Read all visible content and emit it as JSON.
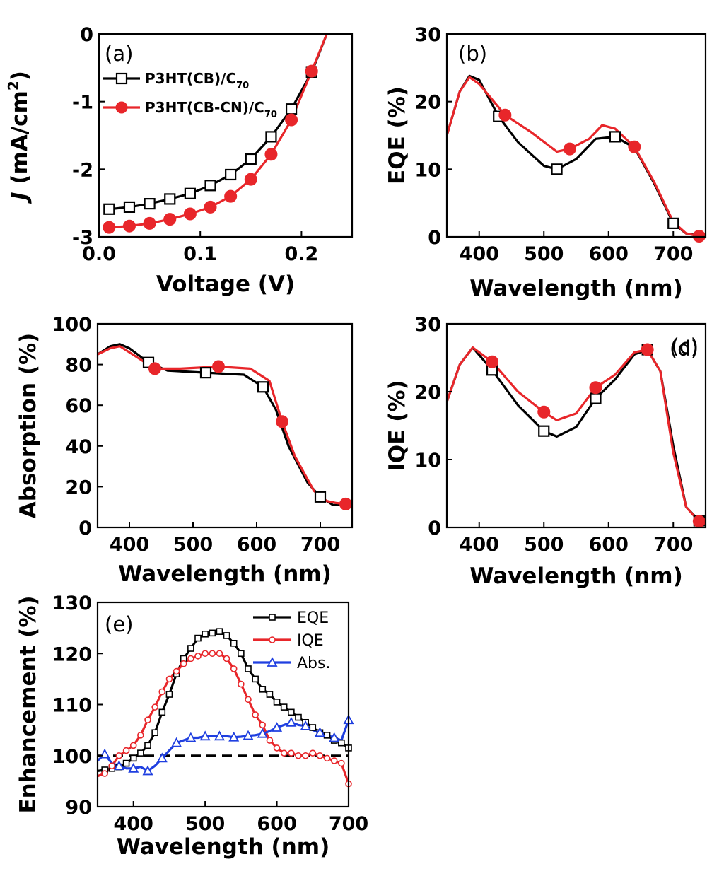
{
  "colors": {
    "black": "#000000",
    "red": "#e8262a",
    "blue": "#1f3fe0",
    "dash": "#000000"
  },
  "chart_data": [
    {
      "id": "a",
      "type": "line",
      "panel_label": "(a)",
      "xlabel": "Voltage (V)",
      "ylabel": "J (mA/cm²)",
      "ylabel_italic": "J",
      "ylabel_rest": " (mA/cm",
      "ylabel_sup": "2",
      "ylabel_close": ")",
      "xlim": [
        0.0,
        0.25
      ],
      "ylim": [
        -3,
        0
      ],
      "xticks": [
        0.0,
        0.1,
        0.2
      ],
      "xticklabels": [
        "0.0",
        "0.1",
        "0.2"
      ],
      "yticks": [
        0,
        -1,
        -2,
        -3
      ],
      "yticklabels": [
        "0",
        "-1",
        "-2",
        "-3"
      ],
      "legend": [
        {
          "text": "P3HT(CB)/C",
          "sub": "70"
        },
        {
          "text": "P3HT(CB-CN)/C",
          "sub": "70"
        }
      ],
      "series": [
        {
          "name": "P3HT(CB)/C70",
          "color": "#000000",
          "marker": "open-square",
          "x": [
            0.01,
            0.03,
            0.05,
            0.07,
            0.09,
            0.11,
            0.13,
            0.15,
            0.17,
            0.19,
            0.21,
            0.225
          ],
          "y": [
            -2.59,
            -2.56,
            -2.51,
            -2.44,
            -2.36,
            -2.24,
            -2.08,
            -1.85,
            -1.52,
            -1.11,
            -0.57,
            0.0
          ],
          "mx": [
            0.01,
            0.03,
            0.05,
            0.07,
            0.09,
            0.11,
            0.13,
            0.15,
            0.17,
            0.19,
            0.21
          ],
          "my": [
            -2.59,
            -2.56,
            -2.51,
            -2.44,
            -2.36,
            -2.24,
            -2.08,
            -1.85,
            -1.52,
            -1.11,
            -0.57
          ]
        },
        {
          "name": "P3HT(CB-CN)/C70",
          "color": "#e8262a",
          "marker": "filled-circle",
          "x": [
            0.01,
            0.03,
            0.05,
            0.07,
            0.09,
            0.11,
            0.13,
            0.15,
            0.17,
            0.19,
            0.21,
            0.225
          ],
          "y": [
            -2.86,
            -2.84,
            -2.8,
            -2.74,
            -2.66,
            -2.56,
            -2.4,
            -2.15,
            -1.78,
            -1.27,
            -0.55,
            0.0
          ],
          "mx": [
            0.01,
            0.03,
            0.05,
            0.07,
            0.09,
            0.11,
            0.13,
            0.15,
            0.17,
            0.19,
            0.21
          ],
          "my": [
            -2.86,
            -2.84,
            -2.8,
            -2.74,
            -2.66,
            -2.56,
            -2.4,
            -2.15,
            -1.78,
            -1.27,
            -0.55
          ]
        }
      ]
    },
    {
      "id": "b",
      "type": "line",
      "panel_label": "(b)",
      "xlabel": "Wavelength (nm)",
      "ylabel": "EQE (%)",
      "xlim": [
        350,
        750
      ],
      "ylim": [
        0,
        30
      ],
      "xticks": [
        400,
        500,
        600,
        700
      ],
      "xticklabels": [
        "400",
        "500",
        "600",
        "700"
      ],
      "yticks": [
        0,
        10,
        20,
        30
      ],
      "yticklabels": [
        "0",
        "10",
        "20",
        "30"
      ],
      "series": [
        {
          "name": "P3HT(CB)/C70",
          "color": "#000000",
          "marker": "open-square",
          "x": [
            350,
            370,
            385,
            400,
            430,
            460,
            500,
            520,
            550,
            580,
            610,
            640,
            670,
            700,
            720,
            740
          ],
          "y": [
            15,
            21.5,
            23.8,
            23.2,
            17.8,
            14,
            10.5,
            10,
            11.5,
            14.5,
            14.8,
            13.2,
            8,
            2,
            0.5,
            0.2
          ],
          "mx": [
            430,
            520,
            610,
            700
          ],
          "my": [
            17.8,
            10,
            14.8,
            2
          ]
        },
        {
          "name": "P3HT(CB-CN)/C70",
          "color": "#e8262a",
          "marker": "filled-circle",
          "x": [
            350,
            370,
            385,
            400,
            440,
            480,
            520,
            540,
            570,
            590,
            610,
            640,
            670,
            700,
            720,
            740
          ],
          "y": [
            15,
            21.5,
            23.6,
            22.6,
            18,
            15.5,
            12.6,
            13,
            14.5,
            16.5,
            16,
            13.3,
            8.2,
            2.2,
            0.5,
            0.1
          ],
          "mx": [
            440,
            540,
            640,
            740
          ],
          "my": [
            18,
            13,
            13.3,
            0.1
          ]
        }
      ]
    },
    {
      "id": "c",
      "type": "line",
      "panel_label": "(c)",
      "xlabel": "Wavelength (nm)",
      "ylabel": "Absorption (%)",
      "xlim": [
        350,
        750
      ],
      "ylim": [
        0,
        100
      ],
      "xticks": [
        400,
        500,
        600,
        700
      ],
      "xticklabels": [
        "400",
        "500",
        "600",
        "700"
      ],
      "yticks": [
        0,
        20,
        40,
        60,
        80,
        100
      ],
      "yticklabels": [
        "0",
        "20",
        "40",
        "60",
        "80",
        "100"
      ],
      "series": [
        {
          "name": "P3HT(CB)/C70",
          "color": "#000000",
          "marker": "open-square",
          "x": [
            350,
            370,
            385,
            400,
            430,
            460,
            520,
            580,
            610,
            630,
            650,
            680,
            700,
            720,
            740
          ],
          "y": [
            85,
            89,
            90,
            88,
            81,
            77,
            76,
            75,
            69,
            58,
            40,
            22,
            15,
            11,
            11
          ],
          "mx": [
            430,
            520,
            610,
            700
          ],
          "my": [
            81,
            76,
            69,
            15
          ]
        },
        {
          "name": "P3HT(CB-CN)/C70",
          "color": "#e8262a",
          "marker": "filled-circle",
          "x": [
            350,
            370,
            385,
            400,
            440,
            480,
            540,
            590,
            620,
            640,
            660,
            690,
            710,
            725,
            740
          ],
          "y": [
            85,
            88,
            89,
            86,
            78,
            78,
            79,
            78,
            72,
            52,
            35,
            18,
            13,
            12,
            11.5
          ],
          "mx": [
            440,
            540,
            640,
            740
          ],
          "my": [
            78,
            79,
            52,
            11.5
          ]
        }
      ]
    },
    {
      "id": "d",
      "type": "line",
      "panel_label": "(d)",
      "xlabel": "Wavelength (nm)",
      "ylabel": "IQE (%)",
      "xlim": [
        350,
        750
      ],
      "ylim": [
        0,
        30
      ],
      "xticks": [
        400,
        500,
        600,
        700
      ],
      "xticklabels": [
        "400",
        "500",
        "600",
        "700"
      ],
      "yticks": [
        0,
        10,
        20,
        30
      ],
      "yticklabels": [
        "0",
        "10",
        "20",
        "30"
      ],
      "series": [
        {
          "name": "P3HT(CB)/C70",
          "color": "#000000",
          "marker": "open-square",
          "x": [
            350,
            370,
            390,
            420,
            460,
            500,
            520,
            550,
            580,
            610,
            640,
            660,
            680,
            700,
            720,
            740
          ],
          "y": [
            18.5,
            24,
            26.5,
            23.2,
            18,
            14.2,
            13.4,
            14.8,
            19,
            21.8,
            25.5,
            26.2,
            23,
            12,
            3,
            1
          ],
          "mx": [
            420,
            500,
            580,
            660,
            740
          ],
          "my": [
            23.2,
            14.2,
            19,
            26.2,
            1
          ]
        },
        {
          "name": "P3HT(CB-CN)/C70",
          "color": "#e8262a",
          "marker": "filled-circle",
          "x": [
            350,
            370,
            390,
            420,
            460,
            500,
            520,
            550,
            580,
            610,
            640,
            660,
            680,
            700,
            720,
            740
          ],
          "y": [
            18.5,
            24,
            26.5,
            24.4,
            20,
            17,
            15.8,
            16.8,
            20.6,
            22.5,
            25.8,
            26.2,
            23,
            11,
            3,
            0.9
          ],
          "mx": [
            420,
            500,
            580,
            660,
            740
          ],
          "my": [
            24.4,
            17,
            20.6,
            26.2,
            0.9
          ]
        }
      ]
    },
    {
      "id": "e",
      "type": "line",
      "panel_label": "(e)",
      "xlabel": "Wavelength (nm)",
      "ylabel": "Enhancement (%)",
      "xlim": [
        350,
        700
      ],
      "ylim": [
        90,
        130
      ],
      "xticks": [
        400,
        500,
        600,
        700
      ],
      "xticklabels": [
        "400",
        "500",
        "600",
        "700"
      ],
      "yticks": [
        90,
        100,
        110,
        120,
        130
      ],
      "yticklabels": [
        "90",
        "100",
        "110",
        "120",
        "130"
      ],
      "reference_line": 100,
      "series": [
        {
          "name": "EQE",
          "color": "#000000",
          "marker": "small-open-square",
          "x": [
            350,
            360,
            370,
            380,
            390,
            400,
            410,
            420,
            430,
            440,
            450,
            460,
            470,
            480,
            490,
            500,
            510,
            520,
            530,
            540,
            550,
            560,
            570,
            580,
            590,
            600,
            610,
            620,
            630,
            640,
            650,
            660,
            670,
            680,
            690,
            700
          ],
          "y": [
            97,
            97.2,
            97.5,
            97.8,
            98.5,
            99.5,
            100.5,
            102,
            104.5,
            108.5,
            112,
            116,
            119,
            121,
            123,
            123.8,
            124,
            124.3,
            123.5,
            122,
            120,
            117,
            115,
            113,
            112,
            110.5,
            109.5,
            108.5,
            107.5,
            106.5,
            105.5,
            104.5,
            104,
            103,
            102.5,
            101.5
          ],
          "mx": [
            360,
            370,
            380,
            390,
            400,
            410,
            420,
            430,
            440,
            450,
            460,
            470,
            480,
            490,
            500,
            510,
            520,
            530,
            540,
            550,
            560,
            570,
            580,
            590,
            600,
            610,
            620,
            630,
            640,
            650,
            660,
            670,
            680,
            690,
            700
          ],
          "my": [
            97.2,
            97.5,
            97.8,
            98.5,
            99.5,
            100.5,
            102,
            104.5,
            108.5,
            112,
            116,
            119,
            121,
            123,
            123.8,
            124,
            124.3,
            123.5,
            122,
            120,
            117,
            115,
            113,
            112,
            110.5,
            109.5,
            108.5,
            107.5,
            106.5,
            105.5,
            104.5,
            104,
            103,
            102.5,
            101.5
          ]
        },
        {
          "name": "IQE",
          "color": "#e8262a",
          "marker": "small-open-circle",
          "x": [
            350,
            360,
            370,
            380,
            390,
            400,
            410,
            420,
            430,
            440,
            450,
            460,
            470,
            480,
            490,
            500,
            510,
            520,
            530,
            540,
            550,
            560,
            570,
            580,
            590,
            600,
            610,
            620,
            630,
            640,
            650,
            660,
            670,
            680,
            690,
            700
          ],
          "y": [
            96,
            96.5,
            98,
            100,
            101,
            102,
            104,
            107,
            109.5,
            112.5,
            115,
            116.5,
            118,
            119,
            119.5,
            120,
            120,
            120,
            119,
            117,
            114,
            111,
            108,
            106,
            103,
            101.5,
            100.5,
            100.5,
            100,
            100,
            100.5,
            100,
            99.5,
            99,
            98.5,
            94.5
          ],
          "mx": [
            360,
            370,
            380,
            390,
            400,
            410,
            420,
            430,
            440,
            450,
            460,
            470,
            480,
            490,
            500,
            510,
            520,
            530,
            540,
            550,
            560,
            570,
            580,
            590,
            600,
            610,
            620,
            630,
            640,
            650,
            660,
            670,
            680,
            690,
            700
          ],
          "my": [
            96.5,
            98,
            100,
            101,
            102,
            104,
            107,
            109.5,
            112.5,
            115,
            116.5,
            118,
            119,
            119.5,
            120,
            120,
            120,
            119,
            117,
            114,
            111,
            108,
            106,
            103,
            101.5,
            100.5,
            100.5,
            100,
            100,
            100.5,
            100,
            99.5,
            99,
            98.5,
            94.5
          ]
        },
        {
          "name": "Abs.",
          "color": "#1f3fe0",
          "marker": "open-triangle",
          "x": [
            350,
            360,
            370,
            380,
            390,
            400,
            410,
            420,
            430,
            440,
            450,
            460,
            470,
            480,
            490,
            500,
            510,
            520,
            530,
            540,
            550,
            560,
            570,
            580,
            590,
            600,
            610,
            620,
            630,
            640,
            650,
            660,
            670,
            680,
            690,
            700
          ],
          "y": [
            99,
            100.3,
            98.5,
            98,
            97.5,
            97.5,
            97.8,
            97,
            98,
            99.5,
            101,
            102.5,
            103,
            103.5,
            103.5,
            103.8,
            103.8,
            103.8,
            103.8,
            103.6,
            103.7,
            103.9,
            104,
            104.3,
            104.8,
            105.5,
            106,
            106.5,
            106,
            105.8,
            105,
            104.5,
            104,
            103.5,
            103,
            107
          ],
          "mx": [
            360,
            380,
            400,
            420,
            440,
            460,
            480,
            500,
            520,
            540,
            560,
            580,
            600,
            620,
            640,
            660,
            680,
            700
          ],
          "my": [
            100.3,
            98,
            97.5,
            97,
            99.5,
            102.5,
            103.5,
            103.8,
            103.8,
            103.6,
            103.9,
            104.3,
            105.5,
            106.5,
            105.8,
            104.5,
            103.5,
            107
          ]
        }
      ]
    }
  ]
}
